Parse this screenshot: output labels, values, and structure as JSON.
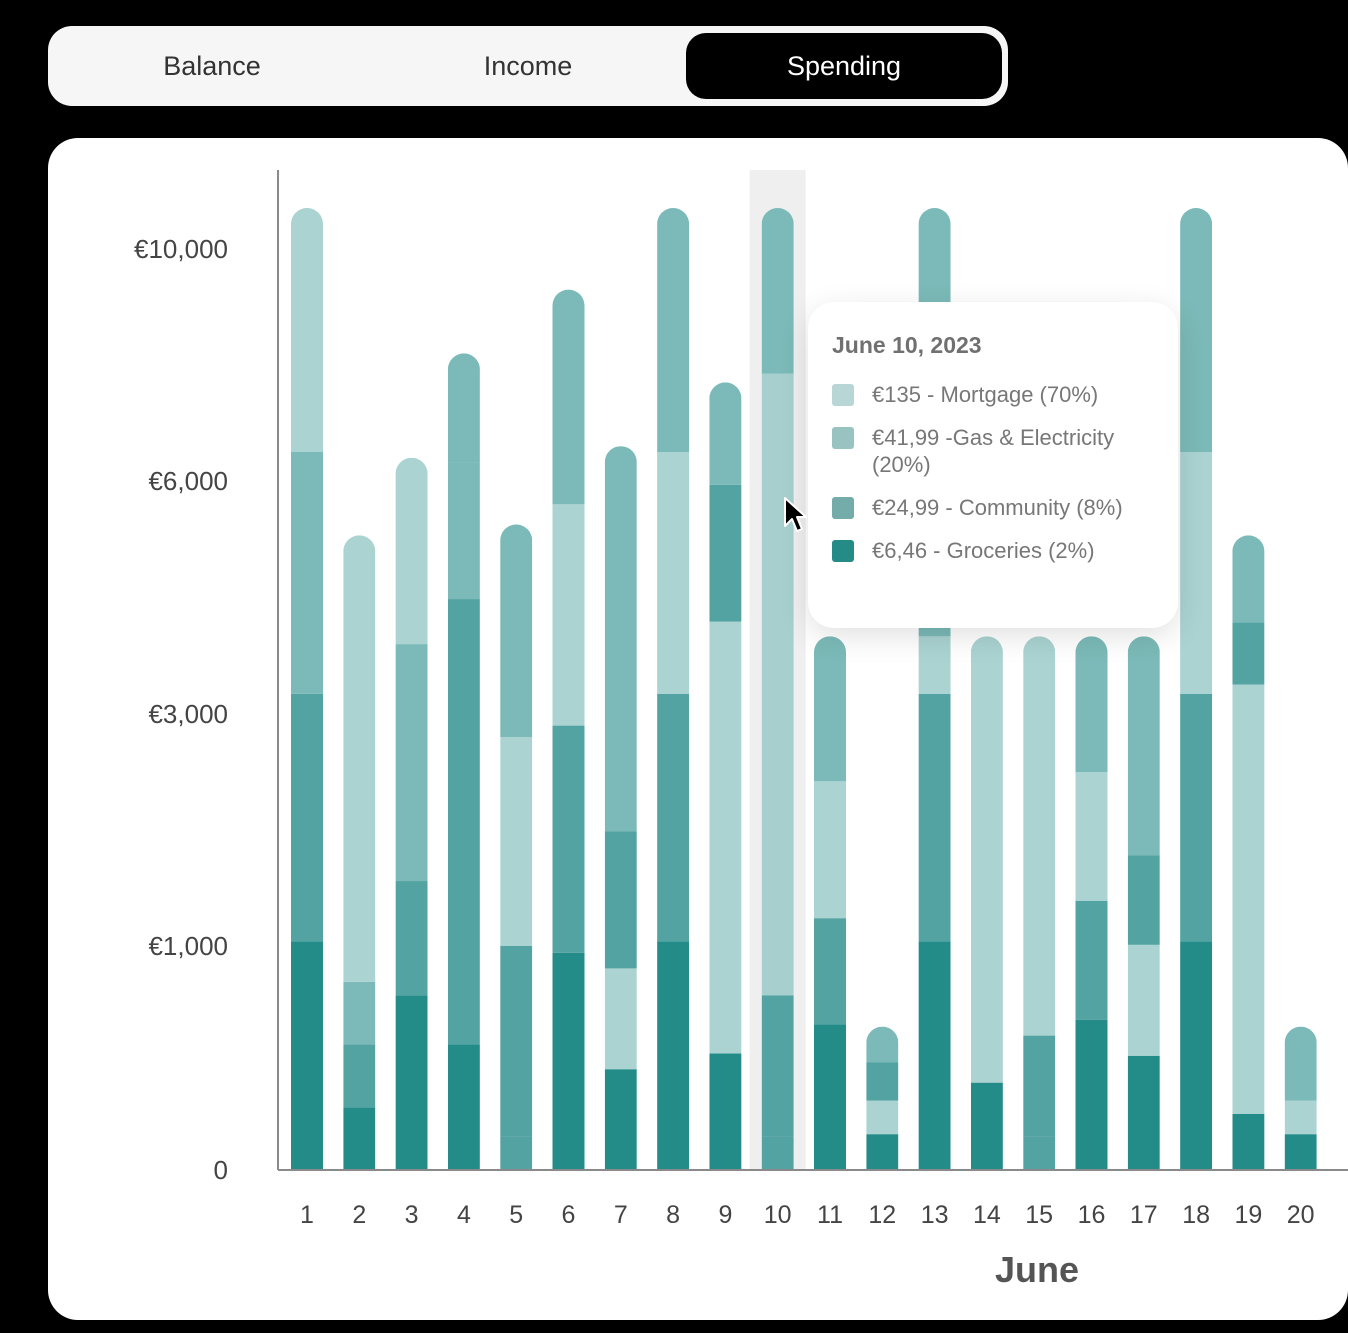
{
  "tabs": [
    {
      "label": "Balance",
      "active": false
    },
    {
      "label": "Income",
      "active": false
    },
    {
      "label": "Spending",
      "active": true
    }
  ],
  "colors": {
    "mortgage": "#aad3d2",
    "gas_electricity": "#7bbab8",
    "community": "#52a3a1",
    "groceries": "#248c88",
    "highlight_band": "#efefef",
    "tab_active_bg": "#000000"
  },
  "tooltip": {
    "title": "June 10, 2023",
    "items": [
      {
        "text": "€135 - Mortgage (70%)",
        "color": "#b7d6d5"
      },
      {
        "text": "€41,99 -Gas & Electricity (20%)",
        "color": "#98c3c1"
      },
      {
        "text": "€24,99 - Community (8%)",
        "color": "#74aca9"
      },
      {
        "text": "€6,46 - Groceries (2%)",
        "color": "#258b87"
      }
    ]
  },
  "chart_data": {
    "type": "bar",
    "stacked": true,
    "xlabel": "June",
    "ylabel": "",
    "y_ticks": [
      "0",
      "€1,000",
      "€3,000",
      "€6,000",
      "€10,000"
    ],
    "y_tick_values": [
      0,
      1000,
      3000,
      6000,
      10000
    ],
    "categories": [
      "1",
      "2",
      "3",
      "4",
      "5",
      "6",
      "7",
      "8",
      "9",
      "10",
      "11",
      "12",
      "13",
      "14",
      "15",
      "16",
      "17",
      "18",
      "19",
      "20"
    ],
    "highlighted_category": "10",
    "segment_order_bottom_to_top": [
      "groceries",
      "community",
      "gas_electricity",
      "mortgage"
    ],
    "bars": [
      [
        {
          "c": "groceries",
          "top": 1040
        },
        {
          "c": "community",
          "top": 3260
        },
        {
          "c": "gas_electricity",
          "top": 6500
        },
        {
          "c": "mortgage",
          "top": 11400
        }
      ],
      [
        {
          "c": "groceries",
          "top": 280
        },
        {
          "c": "community",
          "top": 560
        },
        {
          "c": "gas_electricity",
          "top": 840
        },
        {
          "c": "mortgage",
          "top": 5300
        }
      ],
      [
        {
          "c": "groceries",
          "top": 780
        },
        {
          "c": "community",
          "top": 1560
        },
        {
          "c": "gas_electricity",
          "top": 3900
        },
        {
          "c": "mortgage",
          "top": 6400
        }
      ],
      [
        {
          "c": "groceries",
          "top": 560
        },
        {
          "c": "community",
          "top": 4480
        },
        {
          "c": "gas_electricity",
          "top": 6320
        },
        {
          "c": "gas_electricity",
          "top": 8200
        }
      ],
      [
        {
          "c": "community",
          "top": 150
        },
        {
          "c": "community",
          "top": 1000
        },
        {
          "c": "mortgage",
          "top": 2800
        },
        {
          "c": "gas_electricity",
          "top": 5440
        }
      ],
      [
        {
          "c": "groceries",
          "top": 970
        },
        {
          "c": "community",
          "top": 2900
        },
        {
          "c": "mortgage",
          "top": 5700
        },
        {
          "c": "gas_electricity",
          "top": 9300
        }
      ],
      [
        {
          "c": "groceries",
          "top": 450
        },
        {
          "c": "mortgage",
          "top": 900
        },
        {
          "c": "community",
          "top": 1990
        },
        {
          "c": "gas_electricity",
          "top": 6600
        }
      ],
      [
        {
          "c": "groceries",
          "top": 1040
        },
        {
          "c": "community",
          "top": 3260
        },
        {
          "c": "mortgage",
          "top": 6500
        },
        {
          "c": "gas_electricity",
          "top": 11400
        }
      ],
      [
        {
          "c": "groceries",
          "top": 520
        },
        {
          "c": "mortgage",
          "top": 4190
        },
        {
          "c": "community",
          "top": 5950
        },
        {
          "c": "gas_electricity",
          "top": 7700
        }
      ],
      [
        {
          "c": "community",
          "top": 150
        },
        {
          "c": "community",
          "top": 780
        },
        {
          "c": "mortgage",
          "top": 7850
        },
        {
          "c": "gas_electricity",
          "top": 11400
        }
      ],
      [
        {
          "c": "groceries",
          "top": 650
        },
        {
          "c": "community",
          "top": 1240
        },
        {
          "c": "mortgage",
          "top": 2420
        },
        {
          "c": "gas_electricity",
          "top": 4000
        }
      ],
      [
        {
          "c": "groceries",
          "top": 160
        },
        {
          "c": "mortgage",
          "top": 310
        },
        {
          "c": "community",
          "top": 480
        },
        {
          "c": "gas_electricity",
          "top": 640
        }
      ],
      [
        {
          "c": "groceries",
          "top": 1040
        },
        {
          "c": "community",
          "top": 3260
        },
        {
          "c": "mortgage",
          "top": 4000
        },
        {
          "c": "gas_electricity",
          "top": 11400
        }
      ],
      [
        {
          "c": "groceries",
          "top": 390
        },
        {
          "c": "mortgage",
          "top": 4000
        }
      ],
      [
        {
          "c": "community",
          "top": 150
        },
        {
          "c": "community",
          "top": 600
        },
        {
          "c": "mortgage",
          "top": 4000
        }
      ],
      [
        {
          "c": "groceries",
          "top": 670
        },
        {
          "c": "community",
          "top": 1390
        },
        {
          "c": "mortgage",
          "top": 2500
        },
        {
          "c": "gas_electricity",
          "top": 4000
        }
      ],
      [
        {
          "c": "groceries",
          "top": 510
        },
        {
          "c": "mortgage",
          "top": 1010
        },
        {
          "c": "community",
          "top": 1780
        },
        {
          "c": "gas_electricity",
          "top": 4000
        }
      ],
      [
        {
          "c": "groceries",
          "top": 1040
        },
        {
          "c": "community",
          "top": 3260
        },
        {
          "c": "mortgage",
          "top": 6500
        },
        {
          "c": "gas_electricity",
          "top": 11400
        }
      ],
      [
        {
          "c": "groceries",
          "top": 250
        },
        {
          "c": "mortgage",
          "top": 3380
        },
        {
          "c": "community",
          "top": 4180
        },
        {
          "c": "gas_electricity",
          "top": 5300
        }
      ],
      [
        {
          "c": "groceries",
          "top": 160
        },
        {
          "c": "mortgage",
          "top": 310
        },
        {
          "c": "gas_electricity",
          "top": 480
        },
        {
          "c": "gas_electricity",
          "top": 640
        }
      ]
    ]
  }
}
